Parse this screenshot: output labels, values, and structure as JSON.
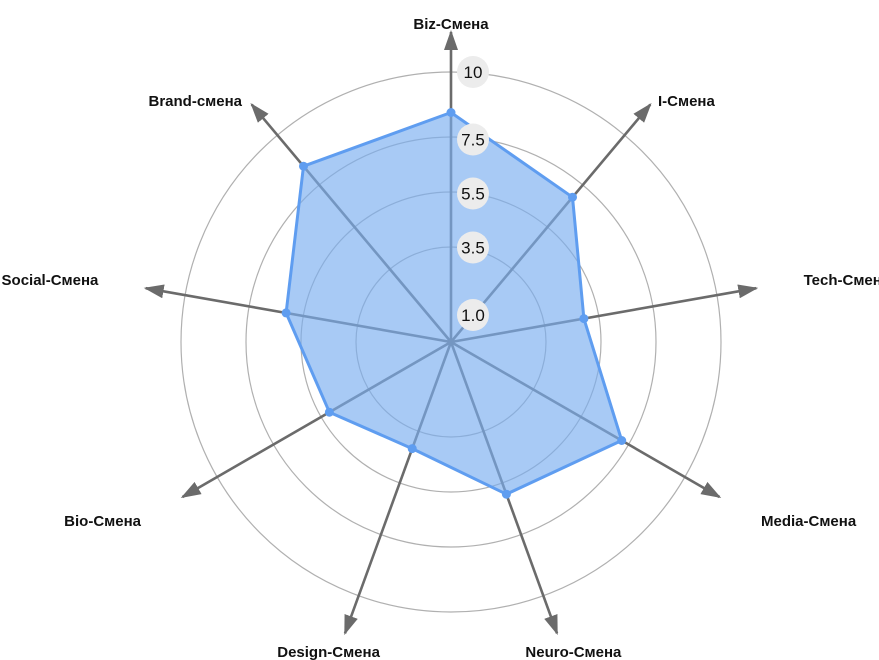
{
  "chart_data": {
    "type": "radar",
    "axes": [
      "Biz-Смена",
      "I-Смена",
      "Tech-Смена",
      "Media-Смена",
      "Neuro-Смена",
      "Design-Смена",
      "Bio-Смена",
      "Social-Смена",
      "Brand-смена"
    ],
    "ticks": [
      "1.0",
      "3.5",
      "5.5",
      "7.5",
      "10"
    ],
    "tick_values": [
      1.0,
      3.5,
      5.5,
      7.5,
      10
    ],
    "series": [
      {
        "values": [
          8.5,
          7.0,
          5.0,
          7.3,
          6.0,
          4.2,
          5.2,
          6.2,
          8.5
        ]
      }
    ],
    "colors": {
      "fill": "#7aaef0",
      "stroke": "#5f9df0",
      "axis": "#6b6b6b",
      "ring": "#b0b0b0",
      "tick_bg": "#ececec"
    }
  }
}
